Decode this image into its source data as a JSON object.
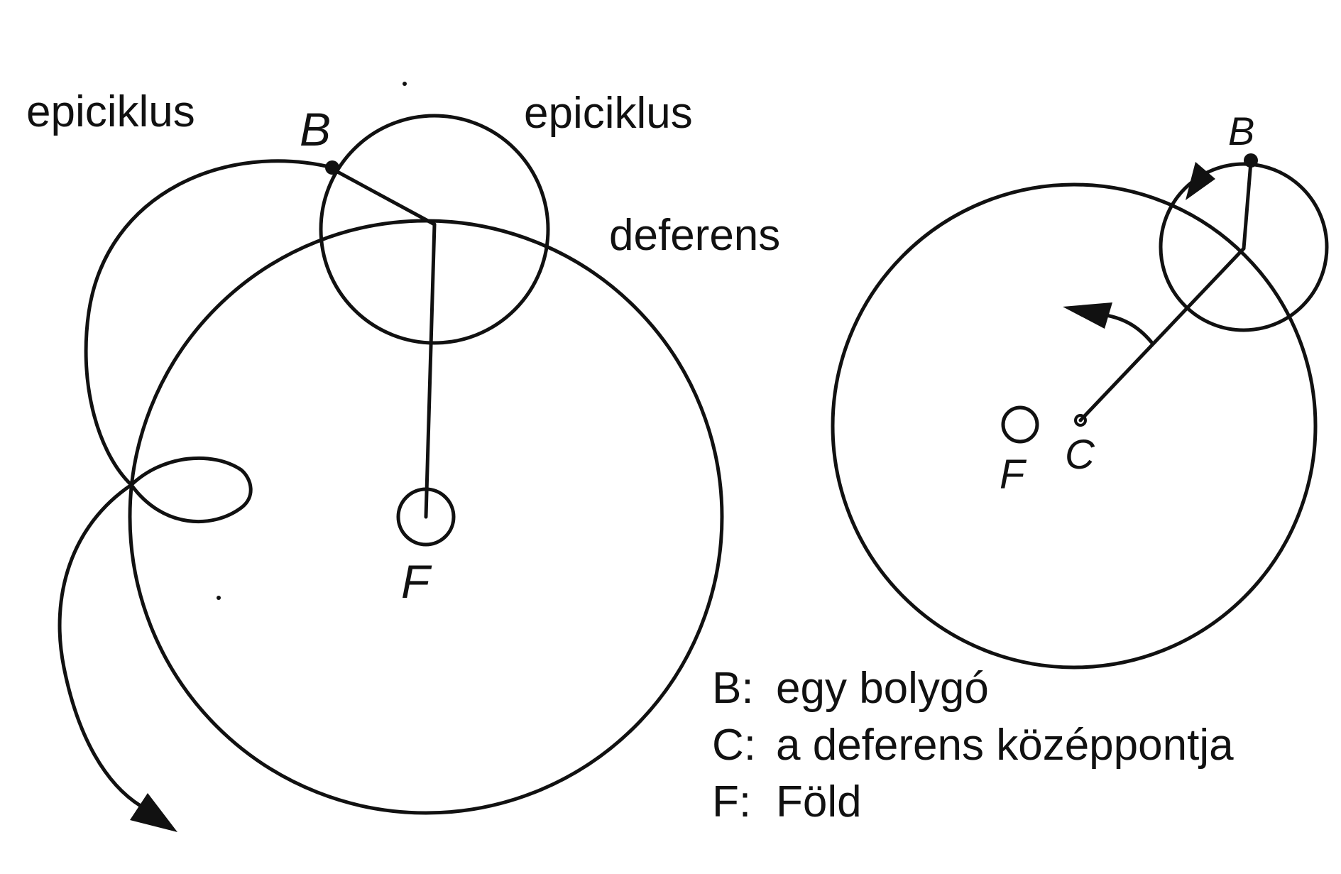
{
  "left_figure": {
    "label_epicycle_trace": "epiciklus",
    "label_epicycle_circle": "epiciklus",
    "label_deferent": "deferens",
    "label_planet": "B",
    "label_earth": "F"
  },
  "right_figure": {
    "label_planet": "B",
    "label_earth": "F",
    "label_center": "C"
  },
  "legend": {
    "items": [
      {
        "key": "B:",
        "text": "egy bolygó"
      },
      {
        "key": "C:",
        "text": "a deferens középpontja"
      },
      {
        "key": "F:",
        "text": "Föld"
      }
    ]
  },
  "colors": {
    "ink": "#111111",
    "background": "#ffffff"
  }
}
